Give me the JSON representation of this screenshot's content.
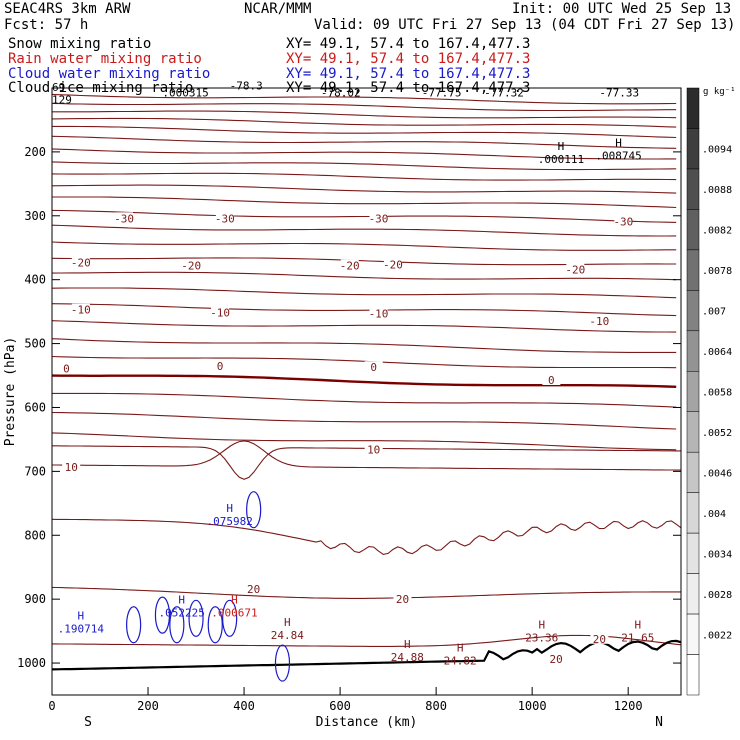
{
  "header": {
    "left1": "SEAC4RS  3km ARW",
    "center1": "NCAR/MMM",
    "right1": "Init: 00 UTC Wed 25 Sep 13",
    "left2": "Fcst:   57 h",
    "right2": "Valid: 09 UTC Fri 27 Sep 13 (04 CDT Fri 27 Sep 13)"
  },
  "fields": [
    {
      "name": "Snow mixing ratio",
      "xy": "XY=  49.1, 57.4 to 167.4,477.3",
      "color": "#000000"
    },
    {
      "name": "Rain water mixing ratio",
      "xy": "XY=  49.1, 57.4 to 167.4,477.3",
      "color": "#cc1a1a"
    },
    {
      "name": "Cloud water mixing ratio",
      "xy": "XY=  49.1, 57.4 to 167.4,477.3",
      "color": "#1a1acc"
    },
    {
      "name": "Cloud ice mixing ratio",
      "xy": "XY=  49.1, 57.4 to 167.4,477.3",
      "color": "#000000"
    }
  ],
  "chart_data": {
    "type": "contour",
    "xlabel": "Distance (km)",
    "ylabel": "Pressure (hPa)",
    "xlim": [
      0,
      1310
    ],
    "ylim": [
      1050,
      100
    ],
    "x_ticks": [
      0,
      200,
      400,
      600,
      800,
      1000,
      1200
    ],
    "y_ticks": [
      200,
      300,
      400,
      500,
      600,
      700,
      800,
      900,
      1000
    ],
    "x_end_labels": {
      "left": "S",
      "right": "N"
    },
    "temperature_contours": {
      "color": "#7a1a1a",
      "zero_color": "#7a0000",
      "labels": [
        {
          "text": "-30",
          "x": 150,
          "p": 304
        },
        {
          "text": "-30",
          "x": 360,
          "p": 304
        },
        {
          "text": "-30",
          "x": 680,
          "p": 304
        },
        {
          "text": "-30",
          "x": 1190,
          "p": 309
        },
        {
          "text": "-20",
          "x": 60,
          "p": 373
        },
        {
          "text": "-20",
          "x": 290,
          "p": 378
        },
        {
          "text": "-20",
          "x": 620,
          "p": 378
        },
        {
          "text": "-20",
          "x": 710,
          "p": 376
        },
        {
          "text": "-20",
          "x": 1090,
          "p": 384
        },
        {
          "text": "-10",
          "x": 60,
          "p": 447
        },
        {
          "text": "-10",
          "x": 350,
          "p": 451
        },
        {
          "text": "-10",
          "x": 680,
          "p": 453
        },
        {
          "text": "-10",
          "x": 1140,
          "p": 465
        },
        {
          "text": "0",
          "x": 30,
          "p": 539
        },
        {
          "text": "0",
          "x": 350,
          "p": 535
        },
        {
          "text": "0",
          "x": 670,
          "p": 537
        },
        {
          "text": "0",
          "x": 1040,
          "p": 557
        },
        {
          "text": "10",
          "x": 40,
          "p": 693
        },
        {
          "text": "10",
          "x": 670,
          "p": 666
        },
        {
          "text": "20",
          "x": 420,
          "p": 884
        },
        {
          "text": "20",
          "x": 730,
          "p": 900
        },
        {
          "text": "20",
          "x": 1140,
          "p": 962
        },
        {
          "text": "20",
          "x": 1050,
          "p": 994
        }
      ]
    },
    "top_labels": [
      {
        "text": "69",
        "x": 0,
        "p": 105
      },
      {
        "text": "129",
        "x": 0,
        "p": 124
      },
      {
        "text": ".000315",
        "x": 230,
        "p": 113
      },
      {
        "text": "-78.3",
        "x": 370,
        "p": 102
      },
      {
        "text": "-78.02",
        "x": 560,
        "p": 113
      },
      {
        "text": "-77.75",
        "x": 770,
        "p": 113
      },
      {
        "text": "-77.32",
        "x": 900,
        "p": 113
      },
      {
        "text": "-77.33",
        "x": 1140,
        "p": 113
      }
    ],
    "maxima": [
      {
        "text": ".000111",
        "x": 1060,
        "p": 217,
        "color": "#000000"
      },
      {
        "text": ".008745",
        "x": 1180,
        "p": 212,
        "color": "#000000"
      },
      {
        "text": ".075982",
        "x": 370,
        "p": 784,
        "color": "#1a1acc"
      },
      {
        "text": ".190714",
        "x": 60,
        "p": 952,
        "color": "#1a1acc"
      },
      {
        "text": ".052225",
        "x": 270,
        "p": 927,
        "color": "#1a1acc"
      },
      {
        "text": ".000671",
        "x": 380,
        "p": 927,
        "color": "#cc1a1a"
      },
      {
        "text": "24.84",
        "x": 490,
        "p": 962,
        "color": "#7a1a1a"
      },
      {
        "text": "24.88",
        "x": 740,
        "p": 997,
        "color": "#7a1a1a"
      },
      {
        "text": "24.82",
        "x": 850,
        "p": 1002,
        "color": "#7a1a1a"
      },
      {
        "text": "23.36",
        "x": 1020,
        "p": 966,
        "color": "#7a1a1a"
      },
      {
        "text": "21.65",
        "x": 1220,
        "p": 966,
        "color": "#7a1a1a"
      }
    ],
    "colorbar": {
      "unit": "g kg⁻¹",
      "tick_labels": [
        ".0094",
        ".0088",
        ".0082",
        ".0078",
        ".007",
        ".0064",
        ".0058",
        ".0052",
        ".0046",
        ".004",
        ".0034",
        ".0028",
        ".0022"
      ],
      "colors": [
        "#2b2b2b",
        "#3e3e3e",
        "#4f4f4f",
        "#606060",
        "#717171",
        "#828282",
        "#939393",
        "#a4a4a4",
        "#b5b5b5",
        "#c6c6c6",
        "#d7d7d7",
        "#e3e3e3",
        "#eeeeee",
        "#f7f7f7",
        "#ffffff"
      ]
    }
  }
}
